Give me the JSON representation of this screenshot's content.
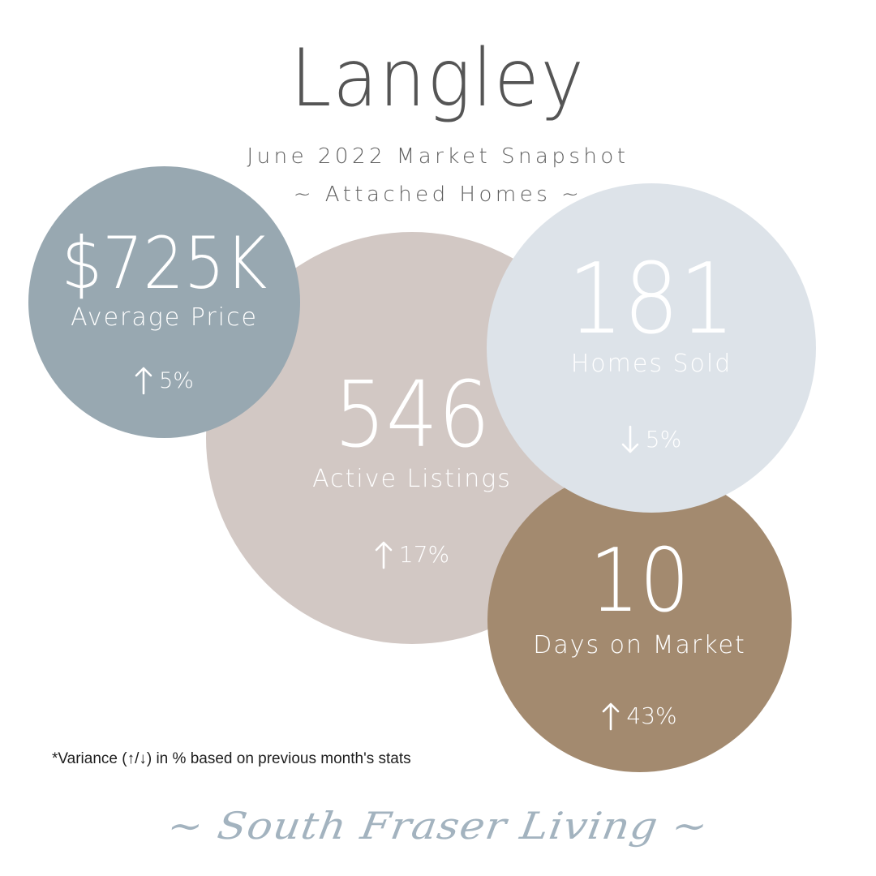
{
  "header": {
    "title": "Langley",
    "subtitle": "June 2022 Market Snapshot",
    "category": "~ Attached Homes ~"
  },
  "stats": {
    "average_price": {
      "value": "$725K",
      "label": "Average Price",
      "direction": "up",
      "change": "5%",
      "color": "#98a8b1"
    },
    "active_listings": {
      "value": "546",
      "label": "Active Listings",
      "direction": "up",
      "change": "17%",
      "color": "#d2c8c4"
    },
    "homes_sold": {
      "value": "181",
      "label": "Homes Sold",
      "direction": "down",
      "change": "5%",
      "color": "#dde3e9"
    },
    "days_on_market": {
      "value": "10",
      "label": "Days on Market",
      "direction": "up",
      "change": "43%",
      "color": "#a38a6f"
    }
  },
  "footnote": "*Variance (↑/↓) in % based on previous month's stats",
  "signature": "~ South Fraser Living ~",
  "icons": {
    "up": "arrow-up-icon",
    "down": "arrow-down-icon"
  }
}
